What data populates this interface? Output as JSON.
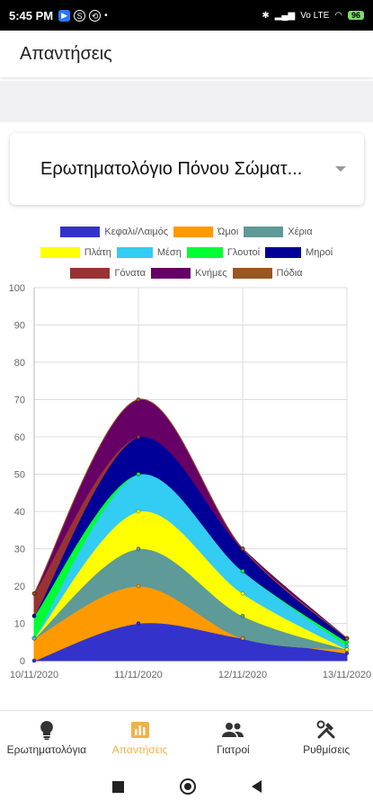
{
  "status_bar": {
    "time": "5:45 PM",
    "indicators": "Vo LTE",
    "battery": "96"
  },
  "app_bar": {
    "title": "Απαντήσεις"
  },
  "dropdown": {
    "selected": "Ερωτηματολόγιο Πόνου Σώματ..."
  },
  "legend": [
    [
      {
        "label": "Κεφαλι/Λαιμός",
        "color": "#3333cc"
      },
      {
        "label": "Ώμοι",
        "color": "#ff9900"
      },
      {
        "label": "Χέρια",
        "color": "#5e9a97"
      }
    ],
    [
      {
        "label": "Πλάτη",
        "color": "#ffff00"
      },
      {
        "label": "Μέση",
        "color": "#33ccf2"
      },
      {
        "label": "Γλουτοί",
        "color": "#00ff33"
      },
      {
        "label": "Μηροί",
        "color": "#000099"
      }
    ],
    [
      {
        "label": "Γόνατα",
        "color": "#993333"
      },
      {
        "label": "Κνήμες",
        "color": "#660066"
      },
      {
        "label": "Πόδια",
        "color": "#995522"
      }
    ]
  ],
  "chart_data": {
    "type": "area",
    "stacked": true,
    "x": [
      "10/11/2020",
      "11/11/2020",
      "12/11/2020",
      "13/11/2020"
    ],
    "ylim": [
      0,
      100
    ],
    "yticks": [
      0,
      10,
      20,
      30,
      40,
      50,
      60,
      70,
      80,
      90,
      100
    ],
    "grid": true,
    "legend_position": "top",
    "series": [
      {
        "name": "Κεφαλι/Λαιμός",
        "color": "#3333cc",
        "values": [
          0,
          10,
          6,
          2
        ]
      },
      {
        "name": "Ώμοι",
        "color": "#ff9900",
        "values": [
          6,
          10,
          0,
          1
        ]
      },
      {
        "name": "Χέρια",
        "color": "#5e9a97",
        "values": [
          0,
          10,
          6,
          0
        ]
      },
      {
        "name": "Πλάτη",
        "color": "#ffff00",
        "values": [
          0,
          10,
          6,
          0
        ]
      },
      {
        "name": "Μέση",
        "color": "#33ccf2",
        "values": [
          0,
          10,
          6,
          1
        ]
      },
      {
        "name": "Γλουτοί",
        "color": "#00ff33",
        "values": [
          6,
          0,
          0,
          1
        ]
      },
      {
        "name": "Μηροί",
        "color": "#000099",
        "values": [
          0,
          10,
          6,
          1
        ]
      },
      {
        "name": "Γόνατα",
        "color": "#993333",
        "values": [
          6,
          0,
          0,
          0
        ]
      },
      {
        "name": "Κνήμες",
        "color": "#660066",
        "values": [
          0,
          10,
          0,
          0
        ]
      },
      {
        "name": "Πόδια",
        "color": "#995522",
        "values": [
          0,
          0,
          0,
          0
        ]
      }
    ]
  },
  "bottom_nav": [
    {
      "label": "Ερωτηματολόγια",
      "icon": "lightbulb-icon",
      "active": false
    },
    {
      "label": "Απαντήσεις",
      "icon": "bar-chart-icon",
      "active": true
    },
    {
      "label": "Γιατροί",
      "icon": "people-icon",
      "active": false
    },
    {
      "label": "Ρυθμίσεις",
      "icon": "tools-icon",
      "active": false
    }
  ],
  "colors": {
    "accent": "#f2b04a"
  }
}
